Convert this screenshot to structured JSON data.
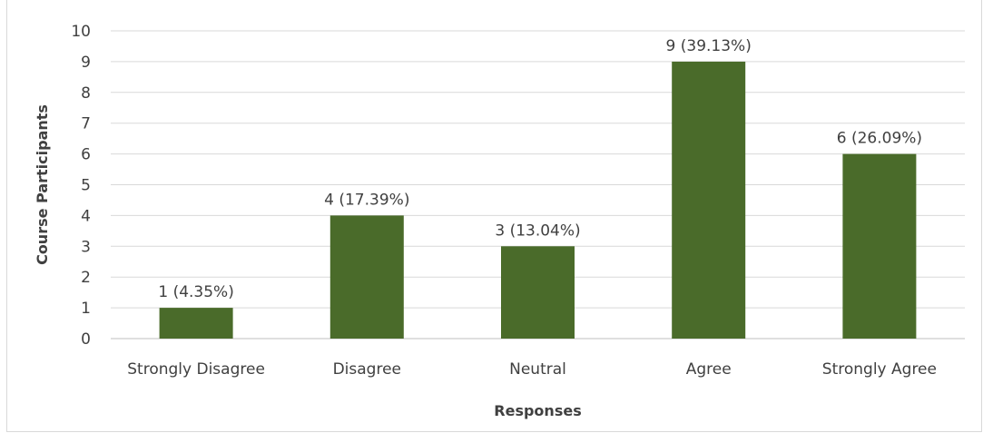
{
  "chart_data": {
    "type": "bar",
    "categories": [
      "Strongly Disagree",
      "Disagree",
      "Neutral",
      "Agree",
      "Strongly Agree"
    ],
    "values": [
      1,
      4,
      3,
      9,
      6
    ],
    "data_labels": [
      "1 (4.35%)",
      "4 (17.39%)",
      "3 (13.04%)",
      "9 (39.13%)",
      "6 (26.09%)"
    ],
    "title": "",
    "xlabel": "Responses",
    "ylabel": "Course Participants",
    "ylim": [
      0,
      10
    ],
    "yticks": [
      0,
      1,
      2,
      3,
      4,
      5,
      6,
      7,
      8,
      9,
      10
    ],
    "grid": true,
    "legend": "none",
    "bar_color": "#4a6b2a",
    "grid_color": "#d9d9d9",
    "text_color": "#404040"
  }
}
